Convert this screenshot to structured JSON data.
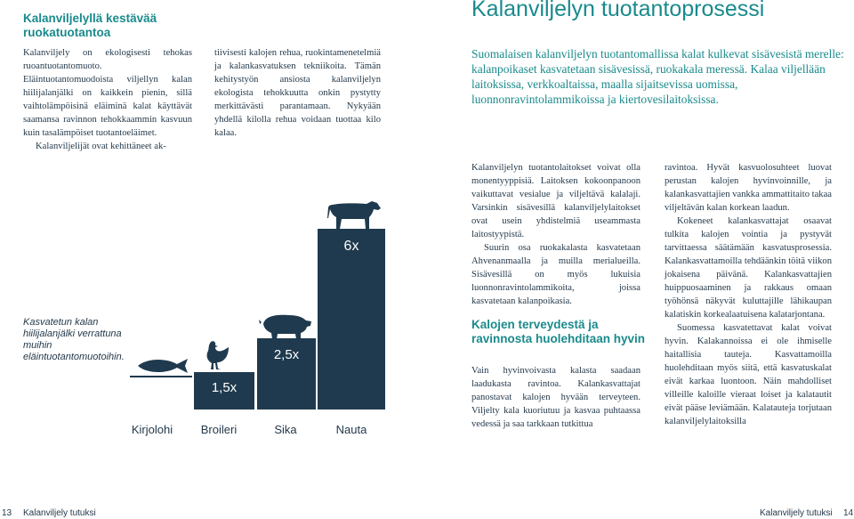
{
  "left_page": {
    "title": "Kalanviljelyllä kestävää ruokatuotantoa",
    "col1_p1": "Kalanviljely on ekologisesti tehokas ruoantuotantomuoto. Eläintuotantomuodoista viljellyn kalan hiilijalanjälki on kaikkein pienin, sillä vaihtolämpöisinä eläiminä kalat käyttävät saamansa ravinnon tehokkaammin kasvuun kuin tasalämpöiset tuotantoeläimet.",
    "col1_p2": "Kalanviljelijät ovat kehittäneet ak-",
    "col2_p1": "tiivisesti kalojen rehua, ruokintamenetelmiä ja kalankasvatuksen tekniikoita. Tämän kehitystyön ansiosta kalanviljelyn ekologista tehokkuutta onkin pystytty merkittävästi parantamaan. Nykyään yhdellä kilolla rehua voidaan tuottaa kilo kalaa.",
    "chart_caption": "Kasvatetun kalan hiilijalanjälki verrattuna muihin eläintuotantomuotoihin."
  },
  "chart_data": {
    "type": "bar",
    "categories": [
      "Kirjolohi",
      "Broileri",
      "Sika",
      "Nauta"
    ],
    "values": [
      1,
      1.5,
      2.5,
      6
    ],
    "value_labels": [
      "",
      "1,5x",
      "2,5x",
      "6x"
    ],
    "icons": [
      "fish-icon",
      "chicken-icon",
      "pig-icon",
      "cow-icon"
    ],
    "bar_color": "#1f3a4e"
  },
  "right_page": {
    "title": "Kalanviljelyn tuotantoprosessi",
    "lead": "Suomalaisen kalanviljelyn tuotantomallissa kalat kulkevat sisävesistä merelle: kalanpoikaset kasvatetaan sisävesissä, ruokakala meressä. Kalaa viljellään laitoksissa, verkkoaltaissa, maalla sijaitsevissa uomissa, luonnonravintolammikoissa ja kiertovesilaitoksissa.",
    "col1_p1": "Kalanviljelyn tuotantolaitokset voivat olla monentyyppisiä. Laitoksen kokoonpanoon vaikuttavat vesialue ja viljeltävä kalalaji. Varsinkin sisävesillä kalanviljelylaitokset ovat usein yhdistelmiä useammasta laitostyypistä.",
    "col1_p2": "Suurin osa ruokakalasta kasvatetaan Ahvenanmaalla ja muilla merialueilla. Sisävesillä on myös lukuisia luonnonravintolammikoita, joissa kasvatetaan kalanpoikasia.",
    "subhead": "Kalojen terveydestä ja ravinnosta huolehditaan hyvin",
    "col1_p3": "Vain hyvinvoivasta kalasta saadaan laadukasta ravintoa. Kalankasvattajat panostavat kalojen hyvään terveyteen. Viljelty kala kuoriutuu ja kasvaa puhtaassa vedessä ja saa tarkkaan tutkittua",
    "col2_p1": "ravintoa. Hyvät kasvuolosuhteet luovat perustan kalojen hyvinvoinnille, ja kalankasvattajien vankka ammattitaito takaa viljeltävän kalan korkean laadun.",
    "col2_p2": "Kokeneet kalankasvattajat osaavat tulkita kalojen vointia ja pystyvät tarvittaessa säätämään kasvatusprosessia. Kalankasvattamoilla tehdäänkin töitä viikon jokaisena päivänä. Kalankasvattajien huippuosaaminen ja rakkaus omaan työhönsä näkyvät kuluttajille lähikaupan kalatiskin korkealaatuisena kalatarjontana.",
    "col2_p3": "Suomessa kasvatettavat kalat voivat hyvin. Kalakannoissa ei ole ihmiselle haitallisia tauteja. Kasvattamoilla huolehditaan myös siitä, että kasvatuskalat eivät karkaa luontoon. Näin mahdolliset villeille kaloille vieraat loiset ja kalatautit eivät pääse leviämään. Kalatauteja torjutaan kalanviljelylaitoksilla"
  },
  "footer": {
    "left_page_number": "13",
    "left_publication": "Kalanviljely tutuksi",
    "right_publication": "Kalanviljely tutuksi",
    "right_page_number": "14"
  }
}
